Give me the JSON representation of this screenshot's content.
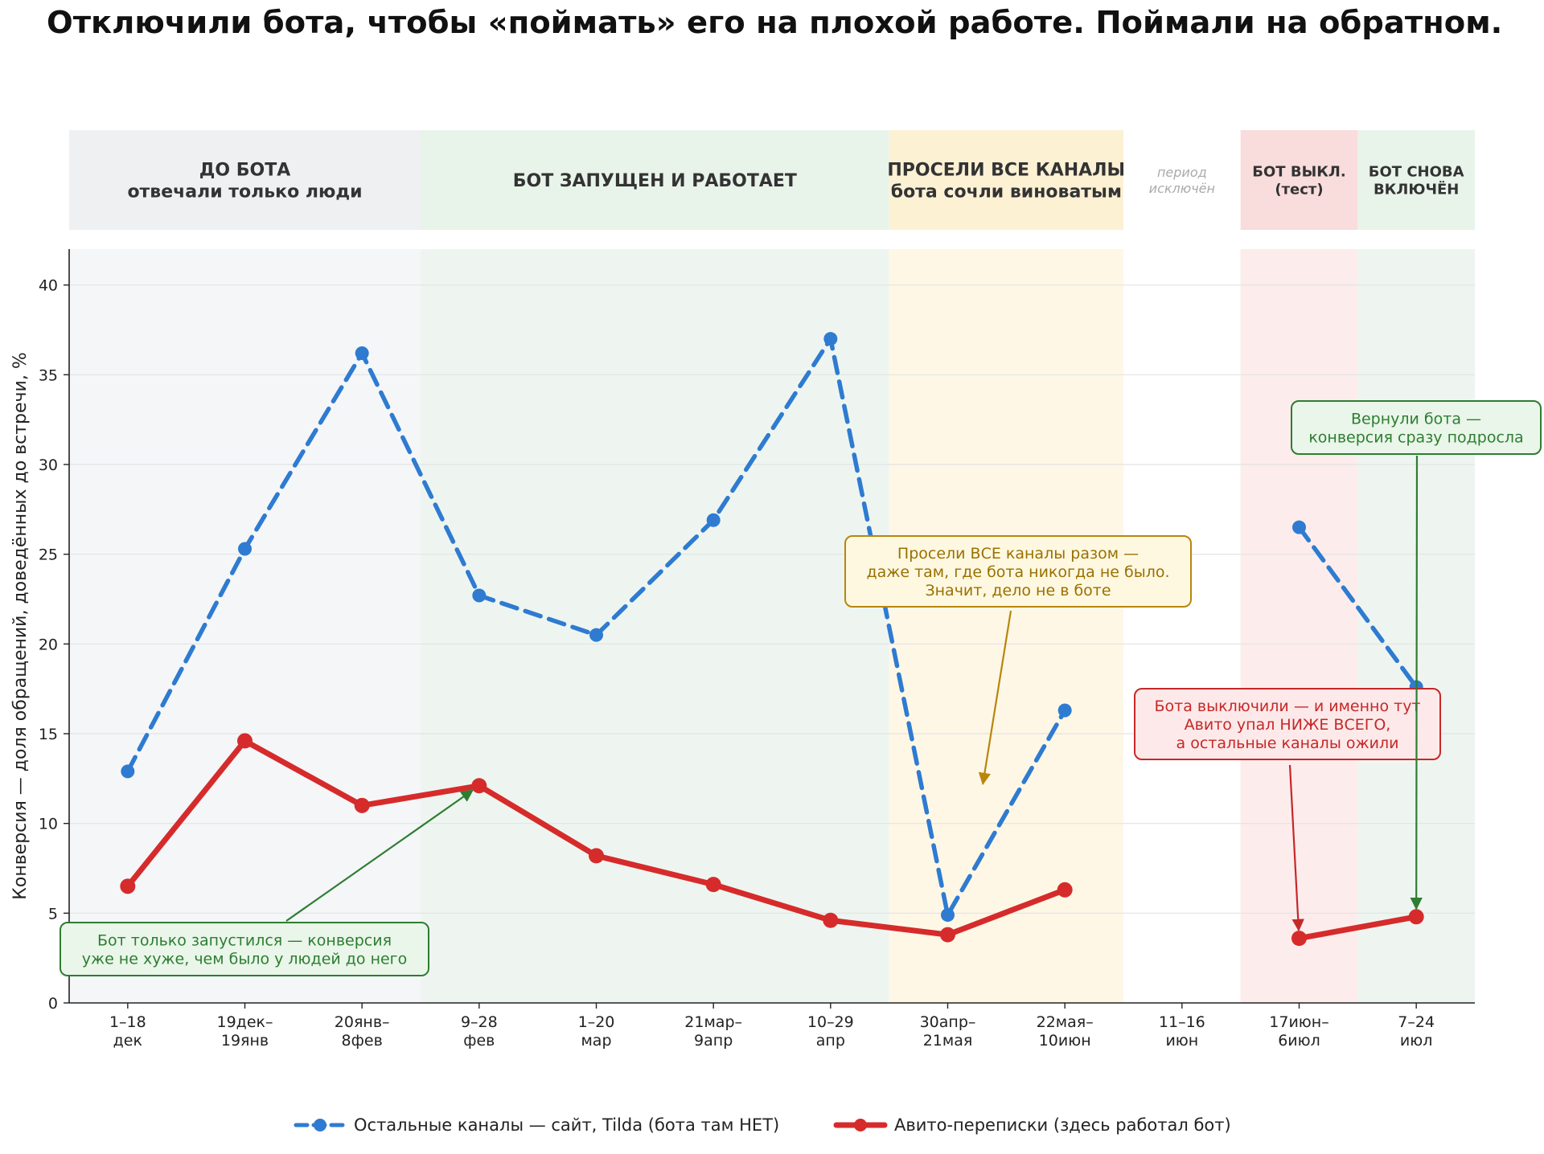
{
  "title": "Отключили бота, чтобы «поймать» его на плохой работе. Поймали на обратном.",
  "chart_data": {
    "type": "line",
    "categories": [
      [
        "1–18",
        "дек"
      ],
      [
        "19дек–",
        "19янв"
      ],
      [
        "20янв–",
        "8фев"
      ],
      [
        "9–28",
        "фев"
      ],
      [
        "1–20",
        "мар"
      ],
      [
        "21мар–",
        "9апр"
      ],
      [
        "10–29",
        "апр"
      ],
      [
        "30апр–",
        "21мая"
      ],
      [
        "22мая–",
        "10июн"
      ],
      [
        "11–16",
        "июн"
      ],
      [
        "17июн–",
        "6июл"
      ],
      [
        "7–24",
        "июл"
      ]
    ],
    "ylabel": "Конверсия — доля обращений, доведённых до встречи, %",
    "ylim": [
      0,
      42
    ],
    "yticks": [
      0,
      5,
      10,
      15,
      20,
      25,
      30,
      35,
      40
    ],
    "grid": "horizontal",
    "legend_position": "bottom-center",
    "series": [
      {
        "name": "Остальные каналы — сайт, Tilda (бота там НЕТ)",
        "color": "#2e7bd1",
        "style": "dashed",
        "values": [
          12.9,
          25.3,
          36.2,
          22.7,
          20.5,
          26.9,
          37.0,
          4.9,
          16.3,
          null,
          26.5,
          17.6
        ]
      },
      {
        "name": "Авито-переписки (здесь работал бот)",
        "color": "#d62b2b",
        "style": "solid",
        "values": [
          6.5,
          14.6,
          11.0,
          12.1,
          8.2,
          6.6,
          4.6,
          3.8,
          6.3,
          null,
          3.6,
          4.8
        ]
      }
    ],
    "periods": [
      {
        "lines": [
          "ДО БОТА",
          "отвечали только люди"
        ],
        "from": 0,
        "to": 2,
        "header_color": "#eef0f2",
        "bg_color": "#f4f6f8",
        "text_color": "#333333",
        "style": "bold"
      },
      {
        "lines": [
          "БОТ ЗАПУЩЕН И РАБОТАЕТ"
        ],
        "from": 3,
        "to": 6,
        "header_color": "#e8f3ea",
        "bg_color": "#eef5f0",
        "text_color": "#333333",
        "style": "bold"
      },
      {
        "lines": [
          "ПРОСЕЛИ ВСЕ КАНАЛЫ",
          "бота сочли виноватым"
        ],
        "from": 7,
        "to": 8,
        "header_color": "#fdf1d4",
        "bg_color": "#fff7e6",
        "text_color": "#333333",
        "style": "bold"
      },
      {
        "lines": [
          "период",
          "исключён"
        ],
        "from": 9,
        "to": 9,
        "header_color": "#ffffff",
        "bg_color": "#ffffff",
        "text_color": "#aaaaaa",
        "style": "italic"
      },
      {
        "lines": [
          "БОТ ВЫКЛ.",
          "(тест)"
        ],
        "from": 10,
        "to": 10,
        "header_color": "#f9dcdc",
        "bg_color": "#fdecec",
        "text_color": "#333333",
        "style": "bold"
      },
      {
        "lines": [
          "БОТ СНОВА",
          "ВКЛЮЧЁН"
        ],
        "from": 11,
        "to": 11,
        "header_color": "#e8f3ea",
        "bg_color": "#eef5f0",
        "text_color": "#333333",
        "style": "bold"
      }
    ],
    "annotations": [
      {
        "lines": [
          "Бот только запустился — конверсия",
          "уже не хуже, чем было у людей до него"
        ],
        "theme": "green",
        "target_category": 3,
        "target_value": 12.1
      },
      {
        "lines": [
          "Просели ВСЕ каналы разом —",
          "даже там, где бота никогда не было.",
          "Значит, дело не в боте"
        ],
        "theme": "yellow",
        "target_category": 7.3,
        "target_value": 12.2
      },
      {
        "lines": [
          "Бота выключили — и именно тут",
          "Авито упал НИЖЕ ВСЕГО,",
          "а остальные каналы ожили"
        ],
        "theme": "red",
        "target_category": 10,
        "target_value": 3.6
      },
      {
        "lines": [
          "Вернули бота —",
          "конверсия сразу подросла"
        ],
        "theme": "green",
        "target_category": 11,
        "target_value": 4.8
      }
    ],
    "colors": {
      "green_fill": "#e9f6e9",
      "green_stroke": "#2e7d32",
      "yellow_fill": "#fff8e1",
      "yellow_stroke": "#b8860b",
      "yellow_text": "#9a7000",
      "red_fill": "#fde9e9",
      "red_stroke": "#c62828"
    }
  }
}
